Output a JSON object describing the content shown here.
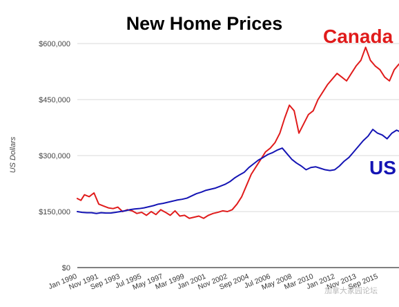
{
  "watermark": "加拿大家园论坛",
  "colors": {
    "canada": "#e01b1b",
    "us": "#1414b4",
    "grid": "#d9d9d9",
    "axis": "#333333"
  },
  "chart_data": {
    "type": "line",
    "title": "New Home Prices",
    "ylabel": "US Dollars",
    "xlabel": "",
    "ylim": [
      0,
      600000
    ],
    "grid": true,
    "y_ticks": [
      0,
      150000,
      300000,
      450000,
      600000
    ],
    "y_tick_labels": [
      "$0",
      "$150,000",
      "$300,000",
      "$450,000",
      "$600,000"
    ],
    "x_tick_labels": [
      "Jan 1990",
      "Nov 1991",
      "Sep 1993",
      "Jul 1995",
      "May 1997",
      "Mar 1999",
      "Jan 2001",
      "Nov 2002",
      "Sep 2004",
      "Jul 2006",
      "May 2008",
      "Mar 2010",
      "Jan 2012",
      "Nov 2013",
      "Sep 2015"
    ],
    "x_range": [
      1990.0,
      2017.0
    ],
    "series": [
      {
        "name": "Canada",
        "color": "#e01b1b",
        "x": [
          1990.0,
          1990.3,
          1990.6,
          1991.0,
          1991.4,
          1991.8,
          1992.2,
          1992.6,
          1993.0,
          1993.4,
          1993.8,
          1994.2,
          1994.6,
          1995.0,
          1995.4,
          1995.8,
          1996.2,
          1996.6,
          1997.0,
          1997.4,
          1997.8,
          1998.2,
          1998.6,
          1999.0,
          1999.4,
          1999.8,
          2000.2,
          2000.6,
          2001.0,
          2001.4,
          2001.8,
          2002.2,
          2002.6,
          2003.0,
          2003.4,
          2003.8,
          2004.2,
          2004.6,
          2005.0,
          2005.4,
          2005.8,
          2006.2,
          2006.6,
          2007.0,
          2007.4,
          2007.8,
          2008.2,
          2008.6,
          2009.0,
          2009.4,
          2009.8,
          2010.2,
          2010.6,
          2011.0,
          2011.4,
          2011.8,
          2012.2,
          2012.6,
          2013.0,
          2013.4,
          2013.8,
          2014.2,
          2014.6,
          2015.0,
          2015.4,
          2015.8,
          2016.2,
          2016.6,
          2017.0
        ],
        "values": [
          185000,
          180000,
          195000,
          190000,
          200000,
          170000,
          165000,
          160000,
          158000,
          162000,
          150000,
          155000,
          152000,
          145000,
          148000,
          140000,
          150000,
          142000,
          155000,
          148000,
          140000,
          152000,
          138000,
          140000,
          132000,
          135000,
          138000,
          132000,
          140000,
          145000,
          148000,
          152000,
          150000,
          155000,
          170000,
          190000,
          220000,
          250000,
          270000,
          290000,
          310000,
          320000,
          335000,
          360000,
          400000,
          435000,
          420000,
          360000,
          385000,
          410000,
          420000,
          450000,
          470000,
          490000,
          505000,
          520000,
          510000,
          500000,
          520000,
          540000,
          555000,
          590000,
          555000,
          540000,
          530000,
          510000,
          500000,
          530000,
          545000
        ]
      },
      {
        "name": "US",
        "color": "#1414b4",
        "x": [
          1990.0,
          1990.4,
          1990.8,
          1991.2,
          1991.6,
          1992.0,
          1992.4,
          1992.8,
          1993.2,
          1993.6,
          1994.0,
          1994.4,
          1994.8,
          1995.2,
          1995.6,
          1996.0,
          1996.4,
          1996.8,
          1997.2,
          1997.6,
          1998.0,
          1998.4,
          1998.8,
          1999.2,
          1999.6,
          2000.0,
          2000.4,
          2000.8,
          2001.2,
          2001.6,
          2002.0,
          2002.4,
          2002.8,
          2003.2,
          2003.6,
          2004.0,
          2004.4,
          2004.8,
          2005.2,
          2005.6,
          2006.0,
          2006.4,
          2006.8,
          2007.2,
          2007.6,
          2008.0,
          2008.4,
          2008.8,
          2009.2,
          2009.6,
          2010.0,
          2010.4,
          2010.8,
          2011.2,
          2011.6,
          2012.0,
          2012.4,
          2012.8,
          2013.2,
          2013.6,
          2014.0,
          2014.4,
          2014.8,
          2015.2,
          2015.6,
          2016.0,
          2016.4,
          2016.8,
          2017.0
        ],
        "values": [
          150000,
          148000,
          147000,
          147000,
          145000,
          147000,
          146000,
          146000,
          148000,
          150000,
          152000,
          155000,
          157000,
          158000,
          160000,
          163000,
          166000,
          170000,
          172000,
          175000,
          178000,
          181000,
          183000,
          186000,
          192000,
          198000,
          202000,
          207000,
          210000,
          213000,
          218000,
          223000,
          230000,
          240000,
          248000,
          255000,
          268000,
          278000,
          288000,
          295000,
          303000,
          308000,
          315000,
          320000,
          305000,
          290000,
          280000,
          272000,
          262000,
          268000,
          270000,
          266000,
          262000,
          260000,
          262000,
          272000,
          285000,
          295000,
          310000,
          325000,
          340000,
          352000,
          370000,
          360000,
          355000,
          345000,
          360000,
          368000,
          365000
        ]
      }
    ],
    "annotations": [
      {
        "text": "Canada",
        "series": "Canada"
      },
      {
        "text": "US",
        "series": "US"
      }
    ]
  }
}
